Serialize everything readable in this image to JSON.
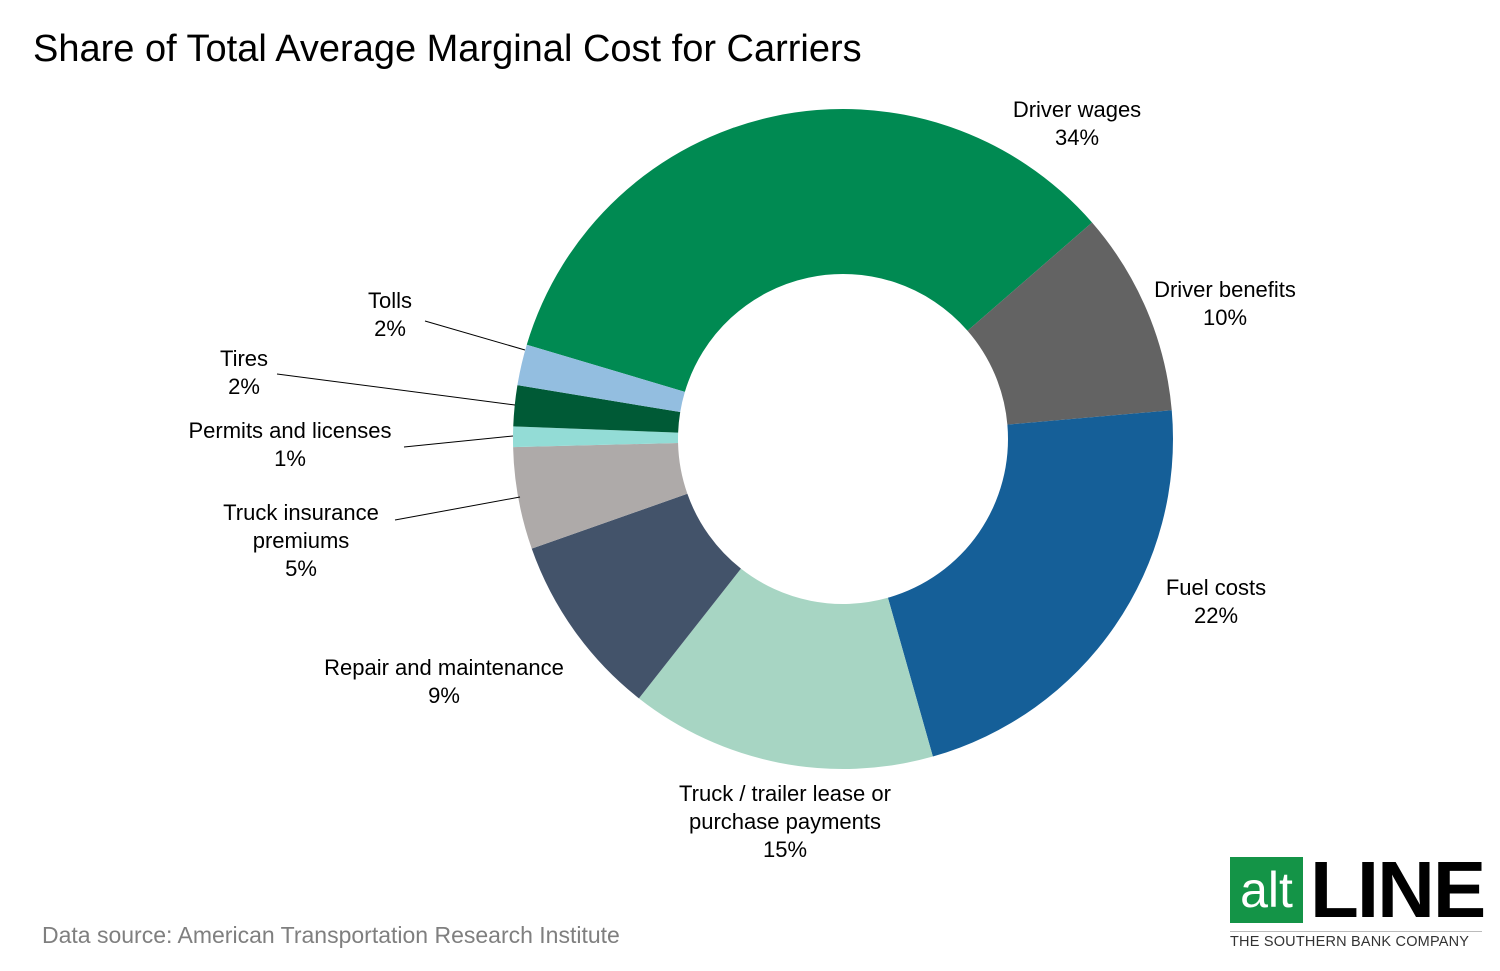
{
  "chart_data": {
    "type": "pie",
    "variant": "donut",
    "title": "Share of Total Average Marginal Cost for Carriers",
    "source": "Data source: American Transportation Research Institute",
    "unit": "%",
    "slices": [
      {
        "label": [
          "Driver wages"
        ],
        "value": 34,
        "display": "34%",
        "color": "#008a52"
      },
      {
        "label": [
          "Driver benefits"
        ],
        "value": 10,
        "display": "10%",
        "color": "#636363"
      },
      {
        "label": [
          "Fuel costs"
        ],
        "value": 22,
        "display": "22%",
        "color": "#155f98"
      },
      {
        "label": [
          "Truck / trailer lease or",
          "purchase payments"
        ],
        "value": 15,
        "display": "15%",
        "color": "#a7d5c3"
      },
      {
        "label": [
          "Repair and maintenance"
        ],
        "value": 9,
        "display": "9%",
        "color": "#43536a"
      },
      {
        "label": [
          "Truck insurance",
          "premiums"
        ],
        "value": 5,
        "display": "5%",
        "color": "#aeaaa9"
      },
      {
        "label": [
          "Permits and licenses"
        ],
        "value": 1,
        "display": "1%",
        "color": "#93dcd6"
      },
      {
        "label": [
          "Tires"
        ],
        "value": 2,
        "display": "2%",
        "color": "#005a36"
      },
      {
        "label": [
          "Tolls"
        ],
        "value": 2,
        "display": "2%",
        "color": "#93bee0"
      }
    ]
  },
  "logo": {
    "alt": "alt",
    "line": "LINE",
    "tagline": "THE SOUTHERN BANK COMPANY",
    "color": "#149447"
  }
}
